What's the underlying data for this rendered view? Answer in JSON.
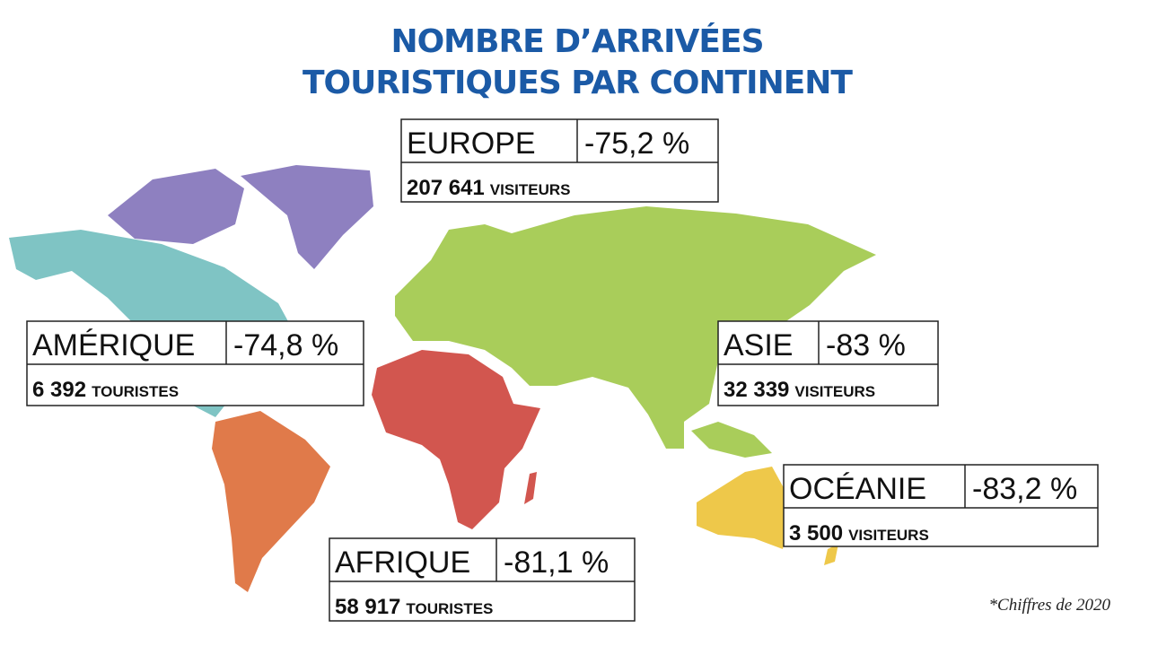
{
  "title": {
    "lines": [
      "NOMBRE D’ARRIVÉES",
      "TOURISTIQUES PAR CONTINENT"
    ]
  },
  "regions": [
    {
      "name": "EUROPE",
      "change": "-75,2 %",
      "count": "207 641",
      "unit": "VISITEURS"
    },
    {
      "name": "AMÉRIQUE",
      "change": "-74,8 %",
      "count": "6 392",
      "unit": "TOURISTES"
    },
    {
      "name": "ASIE",
      "change": "-83 %",
      "count": "32 339",
      "unit": "VISITEURS"
    },
    {
      "name": "OCÉANIE",
      "change": "-83,2 %",
      "count": "3 500",
      "unit": "VISITEURS"
    },
    {
      "name": "AFRIQUE",
      "change": "-81,1 %",
      "count": "58 917",
      "unit": "TOURISTES"
    }
  ],
  "footnote": "*Chiffres de 2020"
}
